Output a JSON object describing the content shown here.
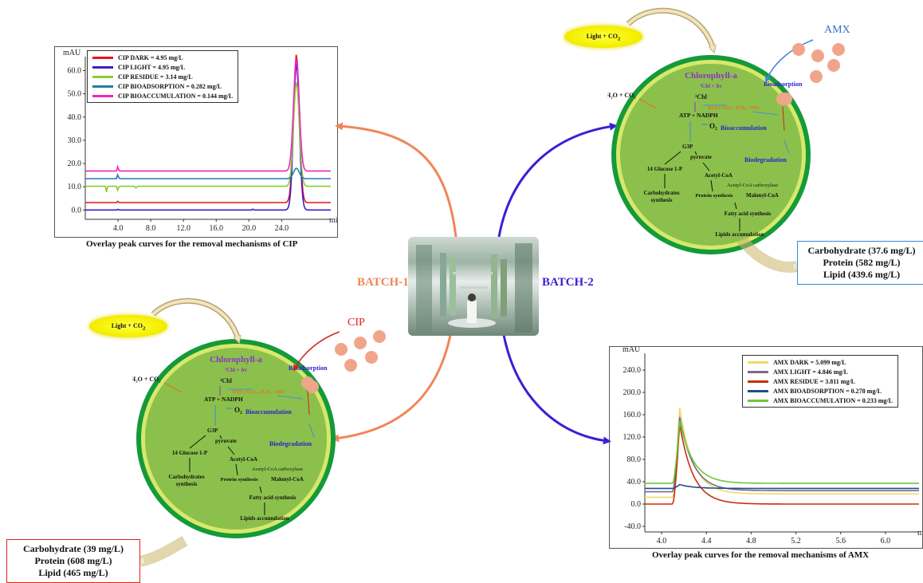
{
  "batch1_label": "BATCH-1",
  "batch2_label": "BATCH-2",
  "cip_label": "CIP",
  "amx_label": "AMX",
  "light_label": "Light + CO",
  "light_sub": "2",
  "cell": {
    "chlorophyll": "Chlorophyll-a",
    "chl_hv": "¹Chl + hv",
    "chl3": "³Chl",
    "h2o_co2": "H₂O + CO₂",
    "ros": "ROS (¹O₂O₂ , H₂O₂, -OH)",
    "atp": "ATP + NADPH",
    "o2": "O₂",
    "g3p": "G3P",
    "pyruvate": "pyruvate",
    "glucose": "14 Glucose 1-P",
    "acetyl": "Acetyl-CoA",
    "carboxylase": "Acetyl-CoA carboxylase",
    "carbs": "Carbohydrates",
    "synthesis": "synthesis",
    "protein": "Protein synthesis",
    "malonyl": "Malonyl-CoA",
    "fatty": "Fatty acid synthesis",
    "lipids": "Lipids accumulation",
    "bioadsorption": "Bioadsorption",
    "bioaccumulation": "Bioaccumulation",
    "biodegradation": "Biodegradation"
  },
  "result_batch1": {
    "carb": "Carbohydrate (39 mg/L)",
    "protein": "Protein (608 mg/L)",
    "lipid": "Lipid (465 mg/L)"
  },
  "result_batch2": {
    "carb": "Carbohydrate (37.6 mg/L)",
    "protein": "Protein (582 mg/L)",
    "lipid": "Lipid (439.6 mg/L)"
  },
  "colors": {
    "batch1": "#f0855a",
    "batch2": "#3a1fd6",
    "cell_outer": "#159a3a",
    "cell_inner": "#8cc04c",
    "cell_ring": "#d7e86a",
    "drug": "#f0a58a",
    "purple": "#8a35c4",
    "blue_text": "#2a1fd0"
  },
  "chart_data": [
    {
      "type": "line",
      "caption": "Overlay peak curves for the removal  mechanisms of CIP",
      "ylabel": "mAU",
      "xlabel": "min",
      "xlim": [
        0,
        30
      ],
      "ylim": [
        -4,
        66
      ],
      "xticks": [
        "4.0",
        "8.0",
        "12.0",
        "16.0",
        "20.0",
        "24.0"
      ],
      "xtick_values": [
        4,
        8,
        12,
        16,
        20,
        24
      ],
      "yticks": [
        "0.0",
        "10.0",
        "20.0",
        "30.0",
        "40.0",
        "50.0",
        "60.0"
      ],
      "ytick_values": [
        0,
        10,
        20,
        30,
        40,
        50,
        60
      ],
      "series": [
        {
          "name": "CIP DARK = 4.95 mg/L",
          "color": "#e8141b",
          "baseline": 3.2,
          "peak": 67,
          "dips": [
            [
              4,
              0.8
            ]
          ]
        },
        {
          "name": "CIP LIGHT = 4.95 mg/L",
          "color": "#3b1fcf",
          "baseline": 0,
          "peak": 63,
          "dips": [
            [
              4,
              0.5
            ],
            [
              20.5,
              0.6
            ]
          ]
        },
        {
          "name": "CIP RESIDUE = 3.14 mg/L",
          "color": "#8ccc34",
          "baseline": 10.2,
          "peak": 55,
          "dips": [
            [
              4,
              -2.5
            ],
            [
              2.6,
              -2.5
            ],
            [
              6.2,
              -1.5
            ]
          ]
        },
        {
          "name": "CIP BIOADSORPTION = 0.282 mg/L",
          "color": "#1f7fa8",
          "baseline": 13.5,
          "peak": 18,
          "dips": [
            [
              4,
              2.5
            ]
          ]
        },
        {
          "name": "CIP BIOACCUMULATION = 0.144 mg/L",
          "color": "#f025c0",
          "baseline": 16.8,
          "peak": 65,
          "dips": [
            [
              4,
              2.8
            ]
          ]
        }
      ],
      "peak_x": 25.8
    },
    {
      "type": "line",
      "caption": "Overlay peak curves for the removal  mechanisms of AMX",
      "ylabel": "mAU",
      "xlabel": "min",
      "xlim": [
        3.85,
        6.3
      ],
      "ylim": [
        -50,
        270
      ],
      "xticks": [
        "4.0",
        "4.4",
        "4.8",
        "5.2",
        "5.6",
        "6.0"
      ],
      "xtick_values": [
        4.0,
        4.4,
        4.8,
        5.2,
        5.6,
        6.0
      ],
      "yticks": [
        "-40.0",
        "0.0",
        "40.0",
        "80.0",
        "120.0",
        "160.0",
        "200.0",
        "240.0"
      ],
      "ytick_values": [
        -40,
        0,
        40,
        80,
        120,
        160,
        200,
        240
      ],
      "series": [
        {
          "name": "AMX DARK = 5.099 mg/L",
          "color": "#eadc6a",
          "baseline": 12,
          "peak": 175,
          "tail": 18
        },
        {
          "name": "AMX LIGHT = 4.846 mg/L",
          "color": "#7a6a8c",
          "baseline": 22,
          "peak": 158,
          "tail": 24
        },
        {
          "name": "AMX RESIDUE = 3.811 mg/L",
          "color": "#c8300c",
          "baseline": 0,
          "peak": 145,
          "tail": 0
        },
        {
          "name": "AMX BIOADSORPTION = 0.278 mg/L",
          "color": "#1f4f8c",
          "baseline": 28,
          "peak": 35,
          "tail": 28
        },
        {
          "name": "AMX BIOACCUMULATION = 0.233 mg/L",
          "color": "#6bc83c",
          "baseline": 37,
          "peak": 150,
          "tail": 37
        }
      ],
      "peak_x": 4.16
    }
  ]
}
